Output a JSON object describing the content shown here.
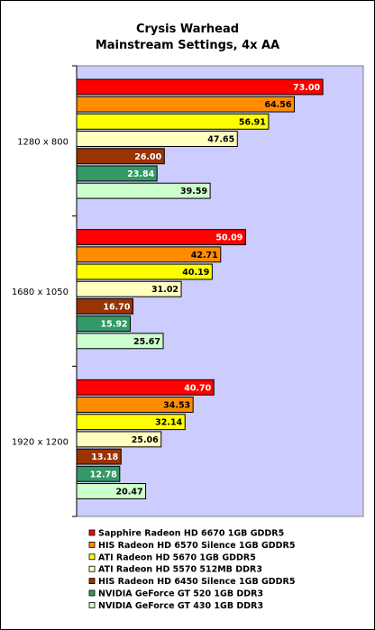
{
  "chart_data": {
    "type": "bar",
    "orientation": "horizontal",
    "title": "Crysis Warhead",
    "subtitle": "Mainstream Settings, 4x AA",
    "categories": [
      "1280 x 800",
      "1680 x 1050",
      "1920 x 1200"
    ],
    "series": [
      {
        "name": "Sapphire Radeon HD 6670 1GB GDDR5",
        "color": "#ff0000",
        "label_color": "#ffffff",
        "values": [
          73.0,
          50.09,
          40.7
        ]
      },
      {
        "name": "HIS Radeon HD 6570 Silence 1GB GDDR5",
        "color": "#ff8c00",
        "label_color": "#000000",
        "values": [
          64.56,
          42.71,
          34.53
        ]
      },
      {
        "name": "ATI Radeon HD 5670 1GB GDDR5",
        "color": "#ffff00",
        "label_color": "#000000",
        "values": [
          56.91,
          40.19,
          32.14
        ]
      },
      {
        "name": "ATI Radeon HD 5570 512MB DDR3",
        "color": "#ffffc0",
        "label_color": "#000000",
        "values": [
          47.65,
          31.02,
          25.06
        ]
      },
      {
        "name": "HIS Radeon HD 6450 Silence 1GB GDDR5",
        "color": "#993300",
        "label_color": "#ffffff",
        "values": [
          26.0,
          16.7,
          13.18
        ]
      },
      {
        "name": "NVIDIA GeForce GT 520 1GB DDR3",
        "color": "#339966",
        "label_color": "#ffffff",
        "values": [
          23.84,
          15.92,
          12.78
        ]
      },
      {
        "name": "NVIDIA GeForce GT 430 1GB DDR3",
        "color": "#ccffcc",
        "label_color": "#000000",
        "values": [
          39.59,
          25.67,
          20.47
        ]
      }
    ],
    "value_labels": [
      [
        "73.00",
        "50.09",
        "40.70"
      ],
      [
        "64.56",
        "42.71",
        "34.53"
      ],
      [
        "56.91",
        "40.19",
        "32.14"
      ],
      [
        "47.65",
        "31.02",
        "25.06"
      ],
      [
        "26.00",
        "16.70",
        "13.18"
      ],
      [
        "23.84",
        "15.92",
        "12.78"
      ],
      [
        "39.59",
        "25.67",
        "20.47"
      ]
    ],
    "xlim": [
      0,
      85
    ],
    "plot_background": "#ccccff",
    "grid": false,
    "legend_position": "bottom"
  }
}
